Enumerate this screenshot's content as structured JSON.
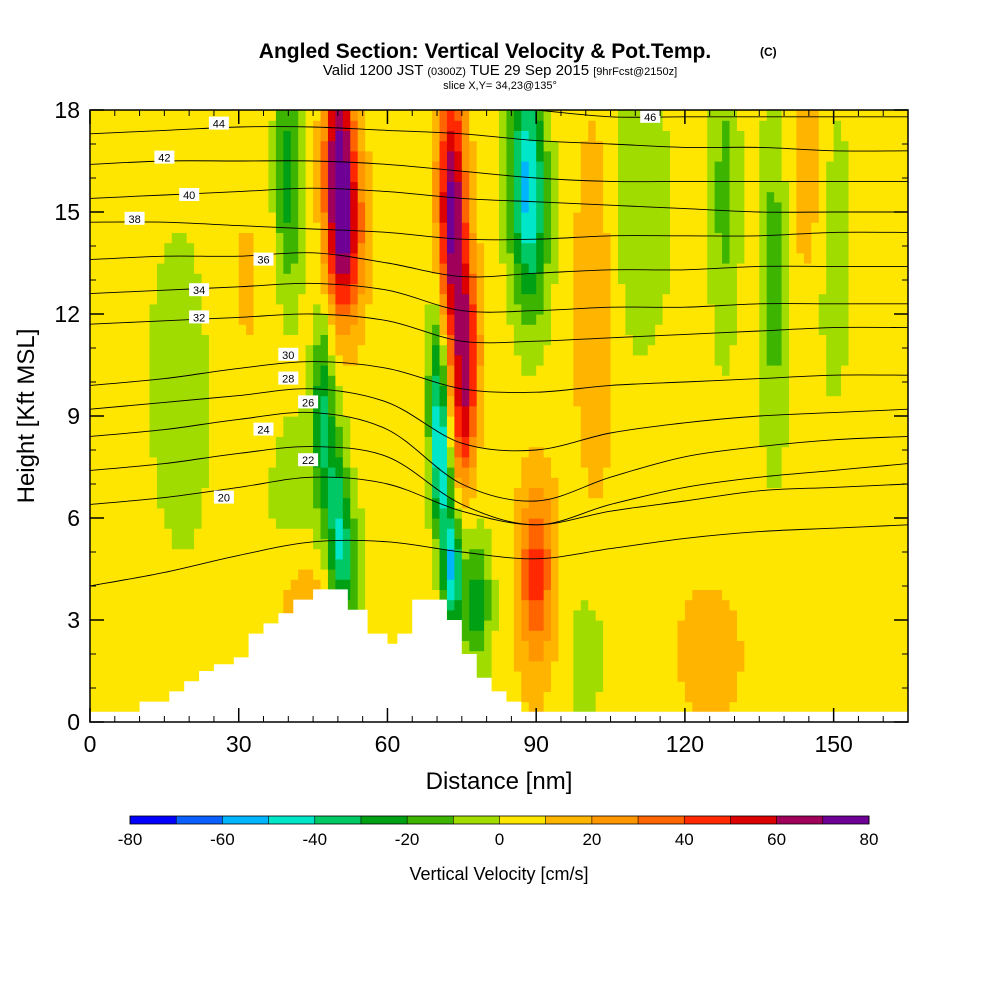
{
  "header": {
    "title": "Angled Section: Vertical Velocity & Pot.Temp.",
    "copyright": "(C)",
    "valid_prefix": "Valid 1200 JST",
    "valid_zulu": "(0300Z)",
    "valid_date": "TUE 29 Sep 2015",
    "forecast": "[9hrFcst@2150z]",
    "slice": "slice X,Y= 34,23@135°"
  },
  "chart_data": {
    "type": "heatmap",
    "xlabel": "Distance [nm]",
    "ylabel": "Height [Kft MSL]",
    "xlim": [
      0,
      165
    ],
    "ylim": [
      0,
      18
    ],
    "x_ticks": [
      "0",
      "30",
      "60",
      "90",
      "120",
      "150"
    ],
    "y_ticks": [
      "0",
      "3",
      "6",
      "9",
      "12",
      "15",
      "18"
    ],
    "x_tick_values": [
      0,
      30,
      60,
      90,
      120,
      150
    ],
    "y_tick_values": [
      0,
      3,
      6,
      9,
      12,
      15,
      18
    ],
    "colorbar": {
      "label": "Vertical Velocity [cm/s]",
      "tick_labels": [
        "-80",
        "-60",
        "-40",
        "-20",
        "0",
        "20",
        "40",
        "60",
        "80"
      ],
      "levels": [
        -80,
        -70,
        -60,
        -50,
        -40,
        -30,
        -20,
        -10,
        0,
        10,
        20,
        30,
        40,
        50,
        60,
        70,
        80
      ],
      "colors": [
        "#0000ff",
        "#0a5fff",
        "#00b4ff",
        "#00e6c8",
        "#00c864",
        "#00a014",
        "#3cb400",
        "#a0dc00",
        "#ffe600",
        "#ffb400",
        "#ff9600",
        "#ff6400",
        "#ff2800",
        "#dc0000",
        "#a0005a",
        "#6e0096"
      ]
    },
    "terrain_kft": [
      {
        "x": 0,
        "h": 0.3
      },
      {
        "x": 10,
        "h": 0.6
      },
      {
        "x": 16,
        "h": 0.9
      },
      {
        "x": 19,
        "h": 1.2
      },
      {
        "x": 22,
        "h": 1.5
      },
      {
        "x": 25,
        "h": 1.7
      },
      {
        "x": 29,
        "h": 1.9
      },
      {
        "x": 32,
        "h": 2.6
      },
      {
        "x": 35,
        "h": 2.9
      },
      {
        "x": 38,
        "h": 3.2
      },
      {
        "x": 41,
        "h": 3.6
      },
      {
        "x": 45,
        "h": 3.9
      },
      {
        "x": 50,
        "h": 3.9
      },
      {
        "x": 52,
        "h": 3.3
      },
      {
        "x": 56,
        "h": 2.6
      },
      {
        "x": 60,
        "h": 2.3
      },
      {
        "x": 62,
        "h": 2.6
      },
      {
        "x": 65,
        "h": 3.6
      },
      {
        "x": 70,
        "h": 3.6
      },
      {
        "x": 72,
        "h": 3.0
      },
      {
        "x": 75,
        "h": 2.0
      },
      {
        "x": 78,
        "h": 1.3
      },
      {
        "x": 81,
        "h": 0.9
      },
      {
        "x": 84,
        "h": 0.6
      },
      {
        "x": 87,
        "h": 0.3
      },
      {
        "x": 165,
        "h": 0.3
      }
    ],
    "vertical_velocity_features": [
      {
        "x": 50,
        "z": 16.5,
        "w": 60,
        "sx": 2.0,
        "sz": 2.5
      },
      {
        "x": 52,
        "z": 14.5,
        "w": 45,
        "sx": 2.5,
        "sz": 2.0
      },
      {
        "x": 73,
        "z": 15.0,
        "w": 70,
        "sx": 2.0,
        "sz": 2.8
      },
      {
        "x": 76,
        "z": 11.0,
        "w": 50,
        "sx": 1.8,
        "sz": 2.0
      },
      {
        "x": 75,
        "z": 8.5,
        "w": 25,
        "sx": 1.5,
        "sz": 1.5
      },
      {
        "x": 90,
        "z": 4.5,
        "w": 28,
        "sx": 2.5,
        "sz": 1.8
      },
      {
        "x": 90,
        "z": 4.0,
        "w": 12,
        "sx": 3.0,
        "sz": 2.5
      },
      {
        "x": 44,
        "z": 3.3,
        "w": 15,
        "sx": 4.0,
        "sz": 1.2
      },
      {
        "x": 102,
        "z": 12.5,
        "w": 18,
        "sx": 3.0,
        "sz": 4.0
      },
      {
        "x": 125,
        "z": 2.0,
        "w": 14,
        "sx": 5.0,
        "sz": 1.5
      },
      {
        "x": 145,
        "z": 16.0,
        "w": 12,
        "sx": 3.0,
        "sz": 2.5
      },
      {
        "x": 30,
        "z": 12.0,
        "w": 8,
        "sx": 6.0,
        "sz": 5.0
      },
      {
        "x": 40,
        "z": 16.0,
        "w": -30,
        "sx": 2.0,
        "sz": 2.5
      },
      {
        "x": 47,
        "z": 9.0,
        "w": -35,
        "sx": 1.5,
        "sz": 2.0
      },
      {
        "x": 50,
        "z": 6.0,
        "w": -35,
        "sx": 1.5,
        "sz": 1.8
      },
      {
        "x": 52,
        "z": 4.5,
        "w": -25,
        "sx": 2.0,
        "sz": 1.2
      },
      {
        "x": 70,
        "z": 10.0,
        "w": -35,
        "sx": 1.3,
        "sz": 2.0
      },
      {
        "x": 71,
        "z": 7.5,
        "w": -45,
        "sx": 1.3,
        "sz": 1.5
      },
      {
        "x": 73,
        "z": 4.5,
        "w": -55,
        "sx": 1.3,
        "sz": 1.3
      },
      {
        "x": 78,
        "z": 3.5,
        "w": -30,
        "sx": 2.0,
        "sz": 1.3
      },
      {
        "x": 88,
        "z": 16.5,
        "w": -45,
        "sx": 2.5,
        "sz": 2.0
      },
      {
        "x": 89,
        "z": 14.0,
        "w": -25,
        "sx": 2.5,
        "sz": 2.0
      },
      {
        "x": 110,
        "z": 15.0,
        "w": -12,
        "sx": 5.0,
        "sz": 3.0
      },
      {
        "x": 128,
        "z": 15.5,
        "w": -18,
        "sx": 2.0,
        "sz": 3.0
      },
      {
        "x": 138,
        "z": 13.0,
        "w": -20,
        "sx": 2.0,
        "sz": 3.5
      },
      {
        "x": 150,
        "z": 14.0,
        "w": -12,
        "sx": 2.5,
        "sz": 3.0
      },
      {
        "x": 40,
        "z": 7.0,
        "w": -8,
        "sx": 6.0,
        "sz": 2.0
      },
      {
        "x": 20,
        "z": 10.0,
        "w": -10,
        "sx": 6.0,
        "sz": 4.0
      },
      {
        "x": 100,
        "z": 2.0,
        "w": -9,
        "sx": 3.0,
        "sz": 1.5
      }
    ],
    "theta_contours_kft": [
      {
        "label": "20",
        "z": [
          4.0,
          4.4,
          4.9,
          5.3,
          5.3,
          5.0,
          4.8,
          5.1,
          5.4,
          5.6,
          5.7,
          5.8
        ],
        "lx": 27,
        "lz": 6.6
      },
      {
        "label": "22",
        "z": [
          6.4,
          6.6,
          6.9,
          7.2,
          7.0,
          6.2,
          5.8,
          6.2,
          6.5,
          6.8,
          6.9,
          7.0
        ],
        "lx": 44,
        "lz": 7.7
      },
      {
        "label": "24",
        "z": [
          7.4,
          7.6,
          7.9,
          8.1,
          7.8,
          6.4,
          5.8,
          6.4,
          6.9,
          7.2,
          7.4,
          7.6
        ],
        "lx": 35,
        "lz": 8.6
      },
      {
        "label": "26",
        "z": [
          8.4,
          8.6,
          8.9,
          9.1,
          8.6,
          7.0,
          6.5,
          7.2,
          7.8,
          8.1,
          8.3,
          8.4
        ],
        "lx": 44,
        "lz": 9.4
      },
      {
        "label": "28",
        "z": [
          9.2,
          9.4,
          9.6,
          9.8,
          9.4,
          8.2,
          8.0,
          8.5,
          8.8,
          9.0,
          9.1,
          9.2
        ],
        "lx": 40,
        "lz": 10.1
      },
      {
        "label": "30",
        "z": [
          9.9,
          10.1,
          10.4,
          10.6,
          10.4,
          9.8,
          9.7,
          9.9,
          10.0,
          10.1,
          10.2,
          10.2
        ],
        "lx": 40,
        "lz": 10.8
      },
      {
        "label": "32",
        "z": [
          11.7,
          11.8,
          11.9,
          12.0,
          11.8,
          11.2,
          11.2,
          11.3,
          11.4,
          11.5,
          11.6,
          11.6
        ],
        "lx": 22,
        "lz": 11.9
      },
      {
        "label": "34",
        "z": [
          12.6,
          12.7,
          12.8,
          12.9,
          12.7,
          12.1,
          12.1,
          12.2,
          12.2,
          12.3,
          12.3,
          12.3
        ],
        "lx": 22,
        "lz": 12.7
      },
      {
        "label": "36",
        "z": [
          13.6,
          13.7,
          13.7,
          13.8,
          13.5,
          13.1,
          13.2,
          13.3,
          13.3,
          13.4,
          13.4,
          13.4
        ],
        "lx": 35,
        "lz": 13.6
      },
      {
        "label": "38",
        "z": [
          14.7,
          14.7,
          14.6,
          14.5,
          14.4,
          14.2,
          14.2,
          14.3,
          14.3,
          14.3,
          14.4,
          14.4
        ],
        "lx": 9,
        "lz": 14.8
      },
      {
        "label": "40",
        "z": [
          15.4,
          15.5,
          15.6,
          15.7,
          15.6,
          15.4,
          15.3,
          15.2,
          15.1,
          15.0,
          15.0,
          15.0
        ],
        "lx": 20,
        "lz": 15.5
      },
      {
        "label": "42",
        "z": [
          16.4,
          16.5,
          16.5,
          16.5,
          16.4,
          16.2,
          16.0,
          15.9,
          15.9,
          15.9,
          15.9,
          15.9
        ],
        "lx": 15,
        "lz": 16.6
      },
      {
        "label": "44",
        "z": [
          17.3,
          17.4,
          17.5,
          17.5,
          17.4,
          17.3,
          17.1,
          17.0,
          16.9,
          16.9,
          16.8,
          16.8
        ],
        "lx": 26,
        "lz": 17.6
      },
      {
        "label": "46",
        "z": [
          18.5,
          18.5,
          18.4,
          18.4,
          18.3,
          18.2,
          18.0,
          17.8,
          17.8,
          17.8,
          17.8,
          17.8
        ],
        "lx": 113,
        "lz": 17.8
      }
    ],
    "theta_contour_x": [
      0,
      15,
      30,
      45,
      60,
      75,
      90,
      105,
      120,
      135,
      150,
      165
    ]
  }
}
